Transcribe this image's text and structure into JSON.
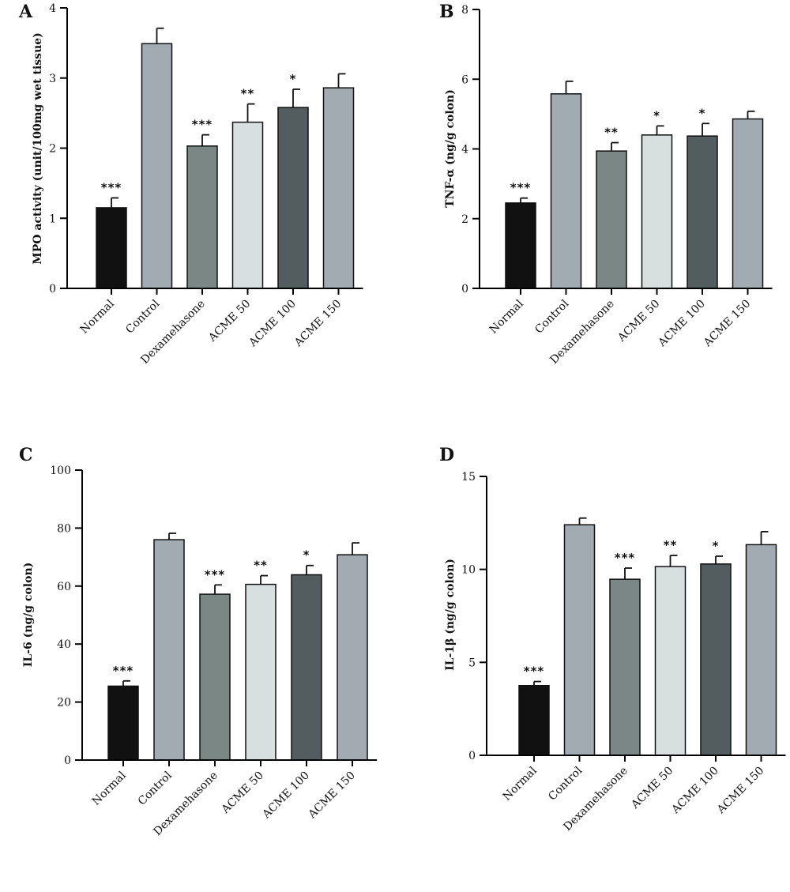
{
  "chart_data": [
    {
      "panel": "A",
      "type": "bar",
      "ylabel": "MPO activity (unit/100mg wet tissue)",
      "ylim": [
        0,
        4
      ],
      "yticks": [
        0,
        1,
        2,
        3,
        4
      ],
      "categories": [
        "Normal",
        "Control",
        "Dexamehasone",
        "ACME 50",
        "ACME 100",
        "ACME 150"
      ],
      "values": [
        1.15,
        3.49,
        2.03,
        2.37,
        2.58,
        2.86
      ],
      "errors": [
        0.14,
        0.22,
        0.16,
        0.26,
        0.26,
        0.2
      ],
      "significance": [
        "***",
        "",
        "***",
        "**",
        "*",
        ""
      ],
      "colors": [
        "#111111",
        "#a2abb1",
        "#7a8784",
        "#d8dfdf",
        "#535c5f",
        "#a2abb1"
      ]
    },
    {
      "panel": "B",
      "type": "bar",
      "ylabel": "TNF-α (ng/g colon)",
      "ylim": [
        0,
        8
      ],
      "yticks": [
        0,
        2,
        4,
        6,
        8
      ],
      "categories": [
        "Normal",
        "Control",
        "Dexamehasone",
        "ACME 50",
        "ACME 100",
        "ACME 150"
      ],
      "values": [
        2.45,
        5.58,
        3.94,
        4.4,
        4.37,
        4.86
      ],
      "errors": [
        0.14,
        0.36,
        0.24,
        0.26,
        0.36,
        0.22
      ],
      "significance": [
        "***",
        "",
        "**",
        "*",
        "*",
        ""
      ],
      "colors": [
        "#111111",
        "#a2abb1",
        "#7a8784",
        "#d8dfdf",
        "#535c5f",
        "#a2abb1"
      ]
    },
    {
      "panel": "C",
      "type": "bar",
      "ylabel": "IL-6 (ng/g colon)",
      "ylim": [
        0,
        100
      ],
      "yticks": [
        0,
        20,
        40,
        60,
        80,
        100
      ],
      "categories": [
        "Normal",
        "Control",
        "Dexamehasone",
        "ACME 50",
        "ACME 100",
        "ACME 150"
      ],
      "values": [
        25.5,
        76,
        57.2,
        60.6,
        63.9,
        70.8
      ],
      "errors": [
        1.8,
        2.2,
        3.2,
        3,
        3.2,
        4.1
      ],
      "significance": [
        "***",
        "",
        "***",
        "**",
        "*",
        ""
      ],
      "colors": [
        "#111111",
        "#a2abb1",
        "#7a8784",
        "#d8dfdf",
        "#535c5f",
        "#a2abb1"
      ]
    },
    {
      "panel": "D",
      "type": "bar",
      "ylabel": "IL-1β (ng/g colon)",
      "ylim": [
        0,
        15
      ],
      "yticks": [
        0,
        5,
        10,
        15
      ],
      "categories": [
        "Normal",
        "Control",
        "Dexamehasone",
        "ACME 50",
        "ACME 100",
        "ACME 150"
      ],
      "values": [
        3.75,
        12.4,
        9.47,
        10.15,
        10.29,
        11.33
      ],
      "errors": [
        0.22,
        0.36,
        0.6,
        0.6,
        0.42,
        0.7
      ],
      "significance": [
        "***",
        "",
        "***",
        "**",
        "*",
        ""
      ],
      "colors": [
        "#111111",
        "#a2abb1",
        "#7a8784",
        "#d8dfdf",
        "#535c5f",
        "#a2abb1"
      ]
    }
  ]
}
